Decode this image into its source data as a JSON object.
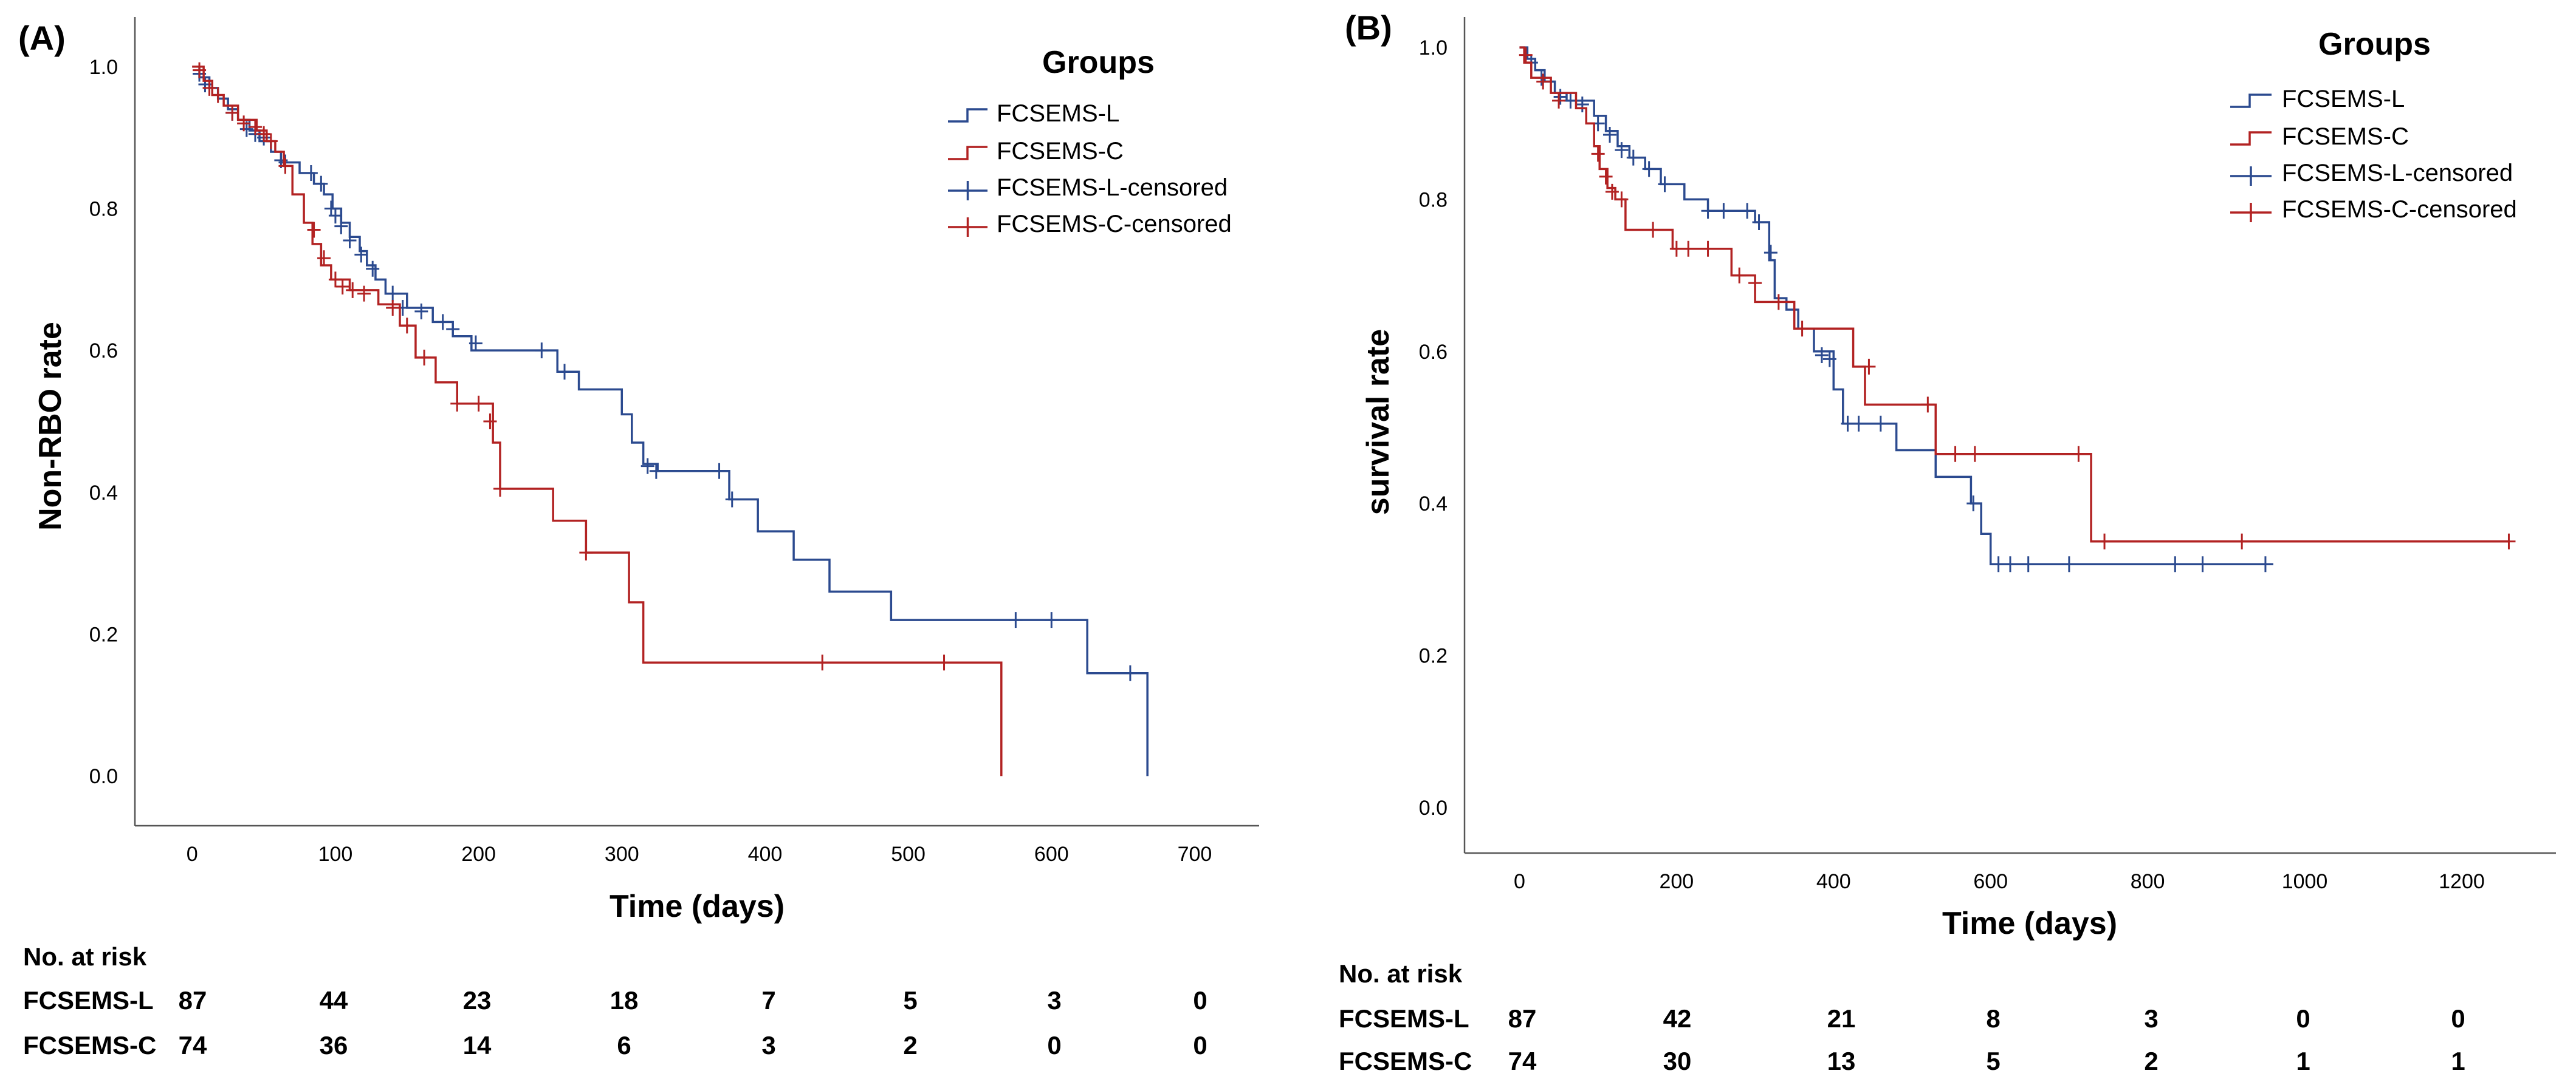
{
  "chart_data": [
    {
      "panel_label": "(A)",
      "type": "line",
      "subtype": "kaplan-meier",
      "xlabel": "Time (days)",
      "ylabel": "Non-RBO rate",
      "xlim": [
        -40,
        745
      ],
      "ylim": [
        -0.07,
        1.07
      ],
      "xticks": [
        0,
        100,
        200,
        300,
        400,
        500,
        600,
        700
      ],
      "yticks": [
        0.0,
        0.2,
        0.4,
        0.6,
        0.8,
        1.0
      ],
      "xtick_labels": [
        "0",
        "100",
        "200",
        "300",
        "400",
        "500",
        "600",
        "700"
      ],
      "ytick_labels": [
        "0.0",
        "0.2",
        "0.4",
        "0.6",
        "0.8",
        "1.0"
      ],
      "legend": {
        "title": "Groups",
        "position": "top-right",
        "entries": [
          "FCSEMS-L",
          "FCSEMS-C",
          "FCSEMS-L-censored",
          "FCSEMS-C-censored"
        ]
      },
      "series": [
        {
          "name": "FCSEMS-L",
          "color": "#2B4A8F",
          "steps": [
            [
              0,
              1.0
            ],
            [
              5,
              0.985
            ],
            [
              12,
              0.97
            ],
            [
              18,
              0.955
            ],
            [
              25,
              0.94
            ],
            [
              32,
              0.925
            ],
            [
              40,
              0.91
            ],
            [
              47,
              0.895
            ],
            [
              55,
              0.88
            ],
            [
              62,
              0.865
            ],
            [
              75,
              0.85
            ],
            [
              85,
              0.835
            ],
            [
              92,
              0.82
            ],
            [
              98,
              0.8
            ],
            [
              104,
              0.78
            ],
            [
              110,
              0.76
            ],
            [
              117,
              0.74
            ],
            [
              122,
              0.72
            ],
            [
              128,
              0.7
            ],
            [
              135,
              0.68
            ],
            [
              150,
              0.66
            ],
            [
              168,
              0.64
            ],
            [
              182,
              0.62
            ],
            [
              195,
              0.6
            ],
            [
              255,
              0.57
            ],
            [
              270,
              0.545
            ],
            [
              300,
              0.51
            ],
            [
              307,
              0.47
            ],
            [
              315,
              0.44
            ],
            [
              325,
              0.43
            ],
            [
              375,
              0.39
            ],
            [
              395,
              0.345
            ],
            [
              420,
              0.305
            ],
            [
              445,
              0.26
            ],
            [
              488,
              0.22
            ],
            [
              625,
              0.145
            ],
            [
              667,
              0.0
            ]
          ],
          "end_x": 667,
          "censored": [
            [
              5,
              0.99
            ],
            [
              9,
              0.975
            ],
            [
              28,
              0.935
            ],
            [
              38,
              0.912
            ],
            [
              44,
              0.905
            ],
            [
              50,
              0.9
            ],
            [
              62,
              0.868
            ],
            [
              65,
              0.865
            ],
            [
              83,
              0.85
            ],
            [
              90,
              0.835
            ],
            [
              97,
              0.8
            ],
            [
              100,
              0.79
            ],
            [
              104,
              0.775
            ],
            [
              110,
              0.755
            ],
            [
              118,
              0.735
            ],
            [
              126,
              0.715
            ],
            [
              140,
              0.68
            ],
            [
              147,
              0.66
            ],
            [
              160,
              0.655
            ],
            [
              175,
              0.64
            ],
            [
              182,
              0.63
            ],
            [
              198,
              0.61
            ],
            [
              244,
              0.6
            ],
            [
              260,
              0.57
            ],
            [
              318,
              0.437
            ],
            [
              324,
              0.43
            ],
            [
              368,
              0.43
            ],
            [
              377,
              0.39
            ],
            [
              575,
              0.22
            ],
            [
              600,
              0.22
            ],
            [
              655,
              0.145
            ]
          ]
        },
        {
          "name": "FCSEMS-C",
          "color": "#B22222",
          "steps": [
            [
              0,
              1.0
            ],
            [
              8,
              0.98
            ],
            [
              14,
              0.96
            ],
            [
              22,
              0.945
            ],
            [
              32,
              0.925
            ],
            [
              45,
              0.91
            ],
            [
              52,
              0.895
            ],
            [
              58,
              0.88
            ],
            [
              64,
              0.86
            ],
            [
              70,
              0.82
            ],
            [
              78,
              0.78
            ],
            [
              84,
              0.75
            ],
            [
              90,
              0.72
            ],
            [
              97,
              0.7
            ],
            [
              110,
              0.685
            ],
            [
              130,
              0.665
            ],
            [
              145,
              0.635
            ],
            [
              156,
              0.59
            ],
            [
              170,
              0.555
            ],
            [
              185,
              0.525
            ],
            [
              210,
              0.47
            ],
            [
              215,
              0.405
            ],
            [
              252,
              0.36
            ],
            [
              275,
              0.315
            ],
            [
              305,
              0.245
            ],
            [
              315,
              0.16
            ],
            [
              565,
              0.0
            ]
          ],
          "end_x": 565,
          "censored": [
            [
              5,
              0.995
            ],
            [
              12,
              0.97
            ],
            [
              18,
              0.96
            ],
            [
              28,
              0.935
            ],
            [
              36,
              0.92
            ],
            [
              44,
              0.915
            ],
            [
              50,
              0.905
            ],
            [
              55,
              0.895
            ],
            [
              65,
              0.86
            ],
            [
              85,
              0.77
            ],
            [
              92,
              0.73
            ],
            [
              100,
              0.7
            ],
            [
              105,
              0.69
            ],
            [
              112,
              0.685
            ],
            [
              120,
              0.68
            ],
            [
              140,
              0.66
            ],
            [
              150,
              0.635
            ],
            [
              162,
              0.59
            ],
            [
              185,
              0.525
            ],
            [
              200,
              0.525
            ],
            [
              208,
              0.5
            ],
            [
              215,
              0.405
            ],
            [
              275,
              0.315
            ],
            [
              440,
              0.16
            ],
            [
              525,
              0.16
            ]
          ]
        }
      ],
      "risk_table": {
        "title": "No. at risk",
        "rows": [
          {
            "label": "FCSEMS-L",
            "values": [
              "87",
              "44",
              "23",
              "18",
              "7",
              "5",
              "3",
              "0"
            ]
          },
          {
            "label": "FCSEMS-C",
            "values": [
              "74",
              "36",
              "14",
              "6",
              "3",
              "2",
              "0",
              "0"
            ]
          }
        ]
      }
    },
    {
      "panel_label": "(B)",
      "type": "line",
      "subtype": "kaplan-meier",
      "xlabel": "Time (days)",
      "ylabel": "survival rate",
      "xlim": [
        -70,
        1320
      ],
      "ylim": [
        -0.06,
        1.04
      ],
      "xticks": [
        0,
        200,
        400,
        600,
        800,
        1000,
        1200
      ],
      "yticks": [
        0.0,
        0.2,
        0.4,
        0.6,
        0.8,
        1.0
      ],
      "xtick_labels": [
        "0",
        "200",
        "400",
        "600",
        "800",
        "1000",
        "1200"
      ],
      "ytick_labels": [
        "0.0",
        "0.2",
        "0.4",
        "0.6",
        "0.8",
        "1.0"
      ],
      "legend": {
        "title": "Groups",
        "position": "top-right",
        "entries": [
          "FCSEMS-L",
          "FCSEMS-C",
          "FCSEMS-L-censored",
          "FCSEMS-C-censored"
        ]
      },
      "series": [
        {
          "name": "FCSEMS-L",
          "color": "#2B4A8F",
          "steps": [
            [
              0,
              1.0
            ],
            [
              10,
              0.985
            ],
            [
              20,
              0.97
            ],
            [
              32,
              0.955
            ],
            [
              45,
              0.94
            ],
            [
              60,
              0.93
            ],
            [
              95,
              0.91
            ],
            [
              110,
              0.89
            ],
            [
              125,
              0.87
            ],
            [
              140,
              0.855
            ],
            [
              160,
              0.84
            ],
            [
              180,
              0.82
            ],
            [
              210,
              0.8
            ],
            [
              240,
              0.785
            ],
            [
              300,
              0.77
            ],
            [
              318,
              0.72
            ],
            [
              325,
              0.67
            ],
            [
              340,
              0.655
            ],
            [
              355,
              0.63
            ],
            [
              375,
              0.6
            ],
            [
              400,
              0.55
            ],
            [
              412,
              0.505
            ],
            [
              480,
              0.47
            ],
            [
              530,
              0.435
            ],
            [
              575,
              0.4
            ],
            [
              588,
              0.36
            ],
            [
              600,
              0.32
            ],
            [
              960,
              0.32
            ]
          ],
          "end_x": 960,
          "censored": [
            [
              15,
              0.98
            ],
            [
              28,
              0.96
            ],
            [
              52,
              0.935
            ],
            [
              65,
              0.93
            ],
            [
              80,
              0.925
            ],
            [
              100,
              0.9
            ],
            [
              115,
              0.885
            ],
            [
              130,
              0.865
            ],
            [
              145,
              0.855
            ],
            [
              165,
              0.84
            ],
            [
              185,
              0.82
            ],
            [
              240,
              0.785
            ],
            [
              260,
              0.785
            ],
            [
              290,
              0.785
            ],
            [
              305,
              0.77
            ],
            [
              320,
              0.73
            ],
            [
              385,
              0.595
            ],
            [
              395,
              0.59
            ],
            [
              418,
              0.505
            ],
            [
              432,
              0.505
            ],
            [
              460,
              0.505
            ],
            [
              578,
              0.4
            ],
            [
              610,
              0.32
            ],
            [
              625,
              0.32
            ],
            [
              648,
              0.32
            ],
            [
              700,
              0.32
            ],
            [
              835,
              0.32
            ],
            [
              870,
              0.32
            ],
            [
              950,
              0.32
            ]
          ]
        },
        {
          "name": "FCSEMS-C",
          "color": "#B22222",
          "steps": [
            [
              0,
              1.0
            ],
            [
              6,
              0.98
            ],
            [
              15,
              0.96
            ],
            [
              40,
              0.94
            ],
            [
              72,
              0.92
            ],
            [
              85,
              0.9
            ],
            [
              95,
              0.87
            ],
            [
              102,
              0.84
            ],
            [
              112,
              0.815
            ],
            [
              122,
              0.8
            ],
            [
              135,
              0.76
            ],
            [
              195,
              0.735
            ],
            [
              270,
              0.7
            ],
            [
              300,
              0.665
            ],
            [
              350,
              0.63
            ],
            [
              425,
              0.58
            ],
            [
              440,
              0.53
            ],
            [
              530,
              0.465
            ],
            [
              728,
              0.35
            ],
            [
              1260,
              0.35
            ]
          ],
          "end_x": 1260,
          "censored": [
            [
              8,
              0.99
            ],
            [
              30,
              0.955
            ],
            [
              50,
              0.93
            ],
            [
              100,
              0.86
            ],
            [
              110,
              0.83
            ],
            [
              118,
              0.81
            ],
            [
              130,
              0.8
            ],
            [
              170,
              0.76
            ],
            [
              200,
              0.735
            ],
            [
              215,
              0.735
            ],
            [
              240,
              0.735
            ],
            [
              280,
              0.7
            ],
            [
              300,
              0.69
            ],
            [
              330,
              0.665
            ],
            [
              360,
              0.63
            ],
            [
              445,
              0.58
            ],
            [
              520,
              0.53
            ],
            [
              555,
              0.465
            ],
            [
              580,
              0.465
            ],
            [
              712,
              0.465
            ],
            [
              745,
              0.35
            ],
            [
              920,
              0.35
            ],
            [
              1260,
              0.35
            ]
          ]
        }
      ],
      "risk_table": {
        "title": "No. at risk",
        "rows": [
          {
            "label": "FCSEMS-L",
            "values": [
              "87",
              "42",
              "21",
              "8",
              "3",
              "0",
              "0"
            ]
          },
          {
            "label": "FCSEMS-C",
            "values": [
              "74",
              "30",
              "13",
              "5",
              "2",
              "1",
              "1"
            ]
          }
        ]
      }
    }
  ]
}
